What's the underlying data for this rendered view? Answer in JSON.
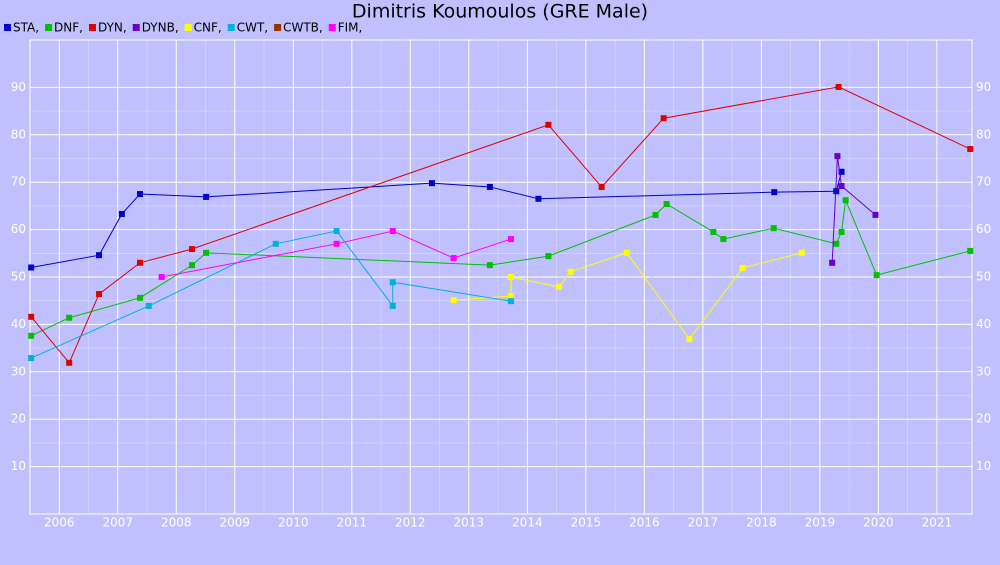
{
  "chart_data": {
    "type": "line",
    "title": "Dimitris Koumoulos (GRE Male)",
    "xlim": [
      2006,
      2022.1
    ],
    "ylim": [
      0,
      100
    ],
    "xticks": [
      {
        "value": 2006.5,
        "label": "2006"
      },
      {
        "value": 2007.5,
        "label": "2007"
      },
      {
        "value": 2008.5,
        "label": "2008"
      },
      {
        "value": 2009.5,
        "label": "2009"
      },
      {
        "value": 2010.5,
        "label": "2010"
      },
      {
        "value": 2011.5,
        "label": "2011"
      },
      {
        "value": 2012.5,
        "label": "2012"
      },
      {
        "value": 2013.5,
        "label": "2013"
      },
      {
        "value": 2014.5,
        "label": "2014"
      },
      {
        "value": 2015.5,
        "label": "2015"
      },
      {
        "value": 2016.5,
        "label": "2016"
      },
      {
        "value": 2017.5,
        "label": "2017"
      },
      {
        "value": 2018.5,
        "label": "2018"
      },
      {
        "value": 2019.5,
        "label": "2019"
      },
      {
        "value": 2020.5,
        "label": "2020"
      },
      {
        "value": 2021.5,
        "label": "2021"
      }
    ],
    "yticks": [
      10,
      20,
      30,
      40,
      50,
      60,
      70,
      80,
      90
    ],
    "grid": true,
    "series": [
      {
        "name": "STA,",
        "color": "#0000cc",
        "x": [
          2006.02,
          2007.18,
          2007.57,
          2007.88,
          2009.01,
          2012.87,
          2013.86,
          2014.69,
          2018.72,
          2019.78,
          2019.87
        ],
        "values": [
          52,
          54.6,
          63.3,
          67.5,
          66.9,
          69.8,
          69,
          66.5,
          67.9,
          68.1,
          72.2
        ]
      },
      {
        "name": "DNF,",
        "color": "#00c000",
        "x": [
          2006.02,
          2006.67,
          2007.88,
          2008.77,
          2009.01,
          2013.86,
          2014.86,
          2016.69,
          2016.88,
          2017.68,
          2017.85,
          2018.71,
          2019.78,
          2019.87,
          2019.94,
          2020.47,
          2022.07
        ],
        "values": [
          37.6,
          41.4,
          45.6,
          52.5,
          55.1,
          52.5,
          54.4,
          63.1,
          65.4,
          59.5,
          58,
          60.3,
          57,
          59.5,
          66.2,
          50.4,
          55.5
        ]
      },
      {
        "name": "DYN,",
        "color": "#e00000",
        "x": [
          2006.02,
          2006.67,
          2007.18,
          2007.88,
          2008.77,
          2014.86,
          2015.77,
          2016.83,
          2019.82,
          2022.07
        ],
        "values": [
          41.6,
          31.9,
          46.4,
          53,
          55.9,
          82.1,
          69,
          83.5,
          90.1,
          77
        ]
      },
      {
        "name": "DYNB,",
        "color": "#6600cc",
        "x": [
          2019.71,
          2019.8,
          2019.87,
          2020.45
        ],
        "values": [
          53,
          75.5,
          69.2,
          63.1
        ]
      },
      {
        "name": "CNF,",
        "color": "#ffff00",
        "x": [
          2013.24,
          2014.22,
          2014.22,
          2015.04,
          2015.24,
          2016.2,
          2017.27,
          2018.18,
          2019.19
        ],
        "values": [
          45.1,
          46,
          50,
          47.9,
          51.1,
          55.1,
          36.9,
          51.9,
          55.1
        ]
      },
      {
        "name": "CWT,",
        "color": "#00b0e0",
        "x": [
          2006.02,
          2008.03,
          2010.2,
          2011.24,
          2012.2,
          2012.2,
          2014.22
        ],
        "values": [
          32.9,
          43.9,
          57,
          59.7,
          43.9,
          48.9,
          44.9
        ]
      },
      {
        "name": "CWTB,",
        "color": "#993300",
        "x": [],
        "values": []
      },
      {
        "name": "FIM,",
        "color": "#ff00ff",
        "x": [
          2008.25,
          2011.24,
          2012.2,
          2013.24,
          2014.22
        ],
        "values": [
          50,
          57,
          59.7,
          54,
          58
        ]
      }
    ]
  }
}
